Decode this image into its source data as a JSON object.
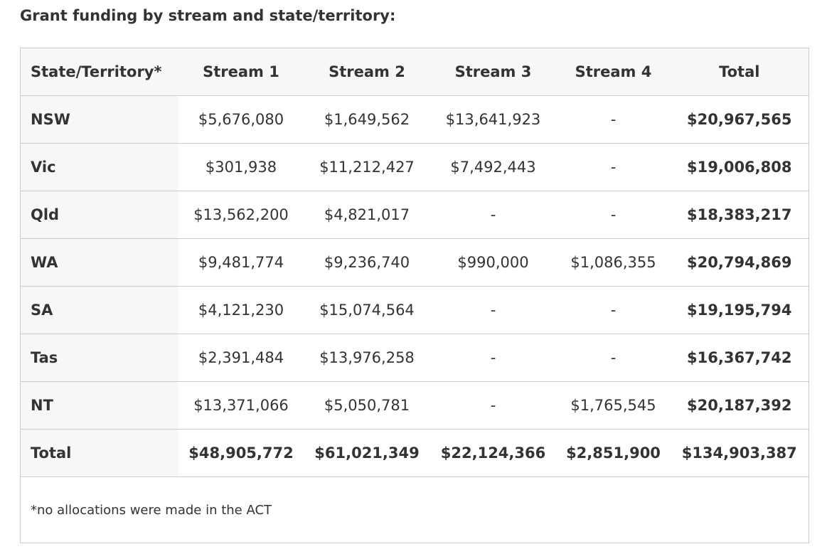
{
  "title": "Grant funding by stream and state/territory:",
  "headers": [
    "State/Territory*",
    "Stream 1",
    "Stream 2",
    "Stream 3",
    "Stream 4",
    "Total"
  ],
  "rows": [
    {
      "state": "NSW",
      "s1": "$5,676,080",
      "s2": "$1,649,562",
      "s3": "$13,641,923",
      "s4": "-",
      "total": "$20,967,565"
    },
    {
      "state": "Vic",
      "s1": "$301,938",
      "s2": "$11,212,427",
      "s3": "$7,492,443",
      "s4": "-",
      "total": "$19,006,808"
    },
    {
      "state": "Qld",
      "s1": "$13,562,200",
      "s2": "$4,821,017",
      "s3": "-",
      "s4": "-",
      "total": "$18,383,217"
    },
    {
      "state": "WA",
      "s1": "$9,481,774",
      "s2": "$9,236,740",
      "s3": "$990,000",
      "s4": "$1,086,355",
      "total": "$20,794,869"
    },
    {
      "state": "SA",
      "s1": "$4,121,230",
      "s2": "$15,074,564",
      "s3": "-",
      "s4": "-",
      "total": "$19,195,794"
    },
    {
      "state": "Tas",
      "s1": "$2,391,484",
      "s2": "$13,976,258",
      "s3": "-",
      "s4": "-",
      "total": "$16,367,742"
    },
    {
      "state": "NT",
      "s1": "$13,371,066",
      "s2": "$5,050,781",
      "s3": "-",
      "s4": "$1,765,545",
      "total": "$20,187,392"
    },
    {
      "state": "Total",
      "s1": "$48,905,772",
      "s2": "$61,021,349",
      "s3": "$22,124,366",
      "s4": "$2,851,900",
      "total": "$134,903,387"
    }
  ],
  "footnote": "*no allocations were made in the ACT"
}
